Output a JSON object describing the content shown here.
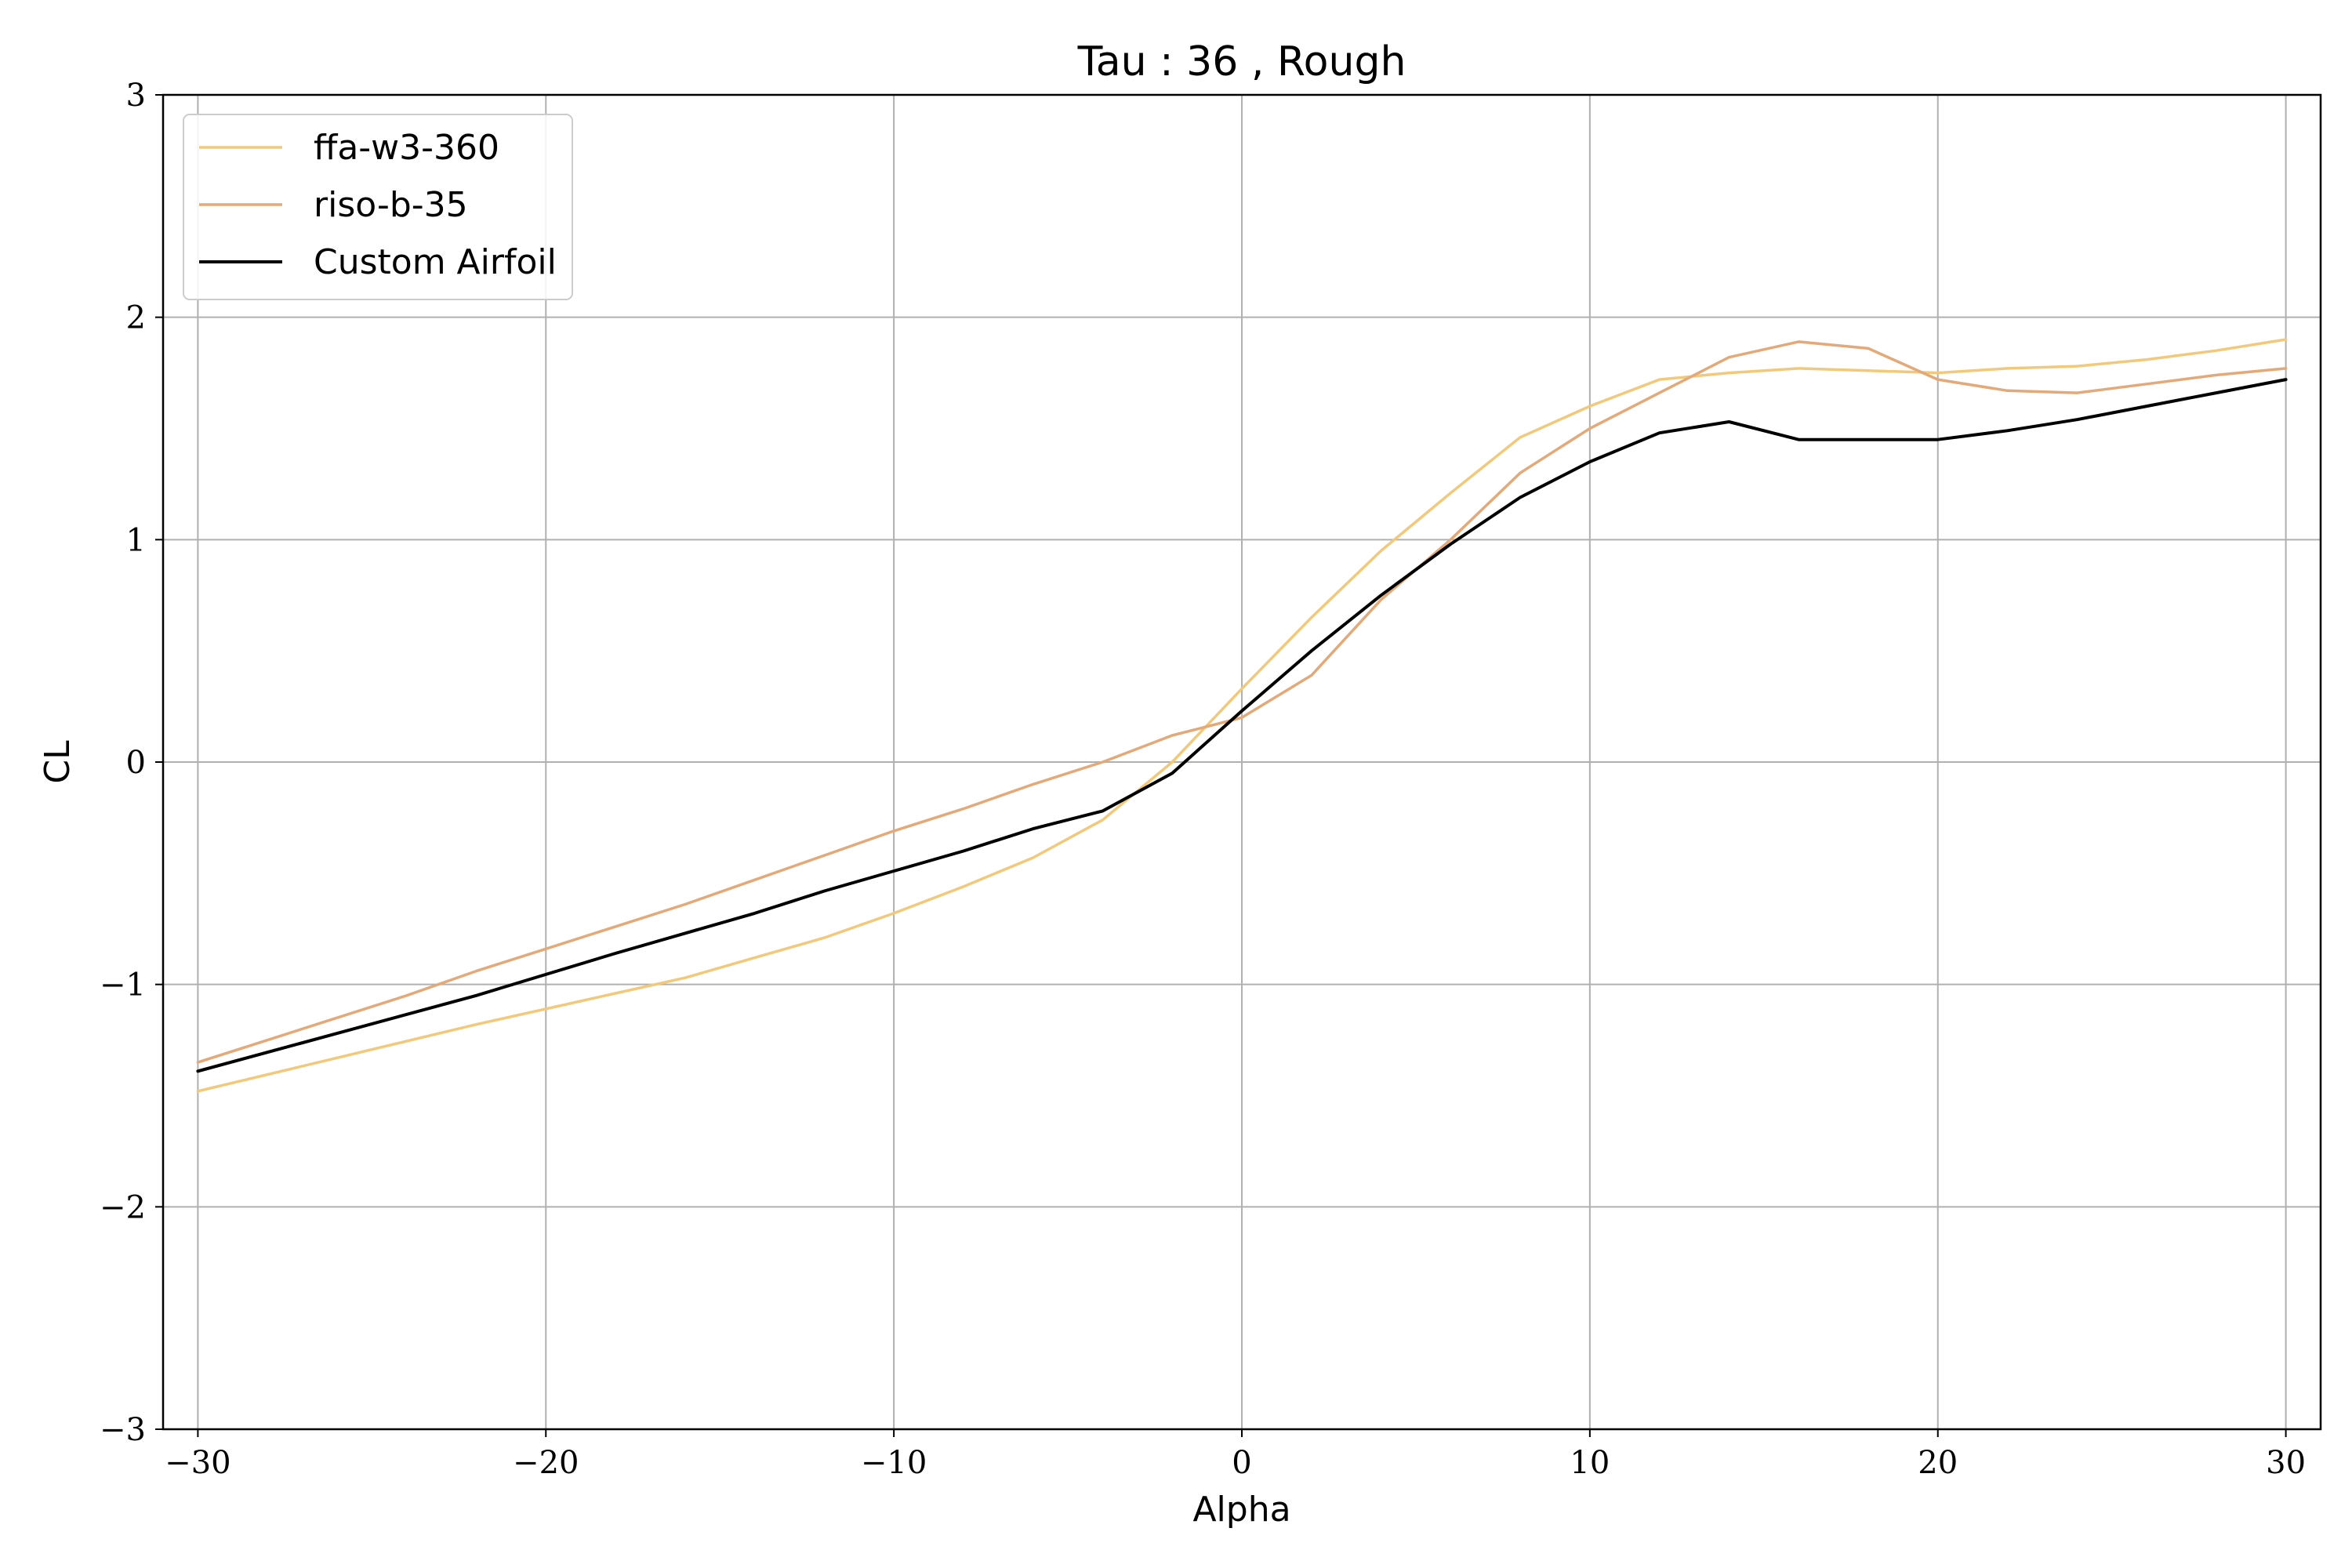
{
  "chart_data": {
    "type": "line",
    "title": "Tau : 36 , Rough",
    "xlabel": "Alpha",
    "ylabel": "CL",
    "xlim": [
      -31,
      31
    ],
    "ylim": [
      -3,
      3
    ],
    "xticks": [
      -30,
      -20,
      -10,
      0,
      10,
      20,
      30
    ],
    "yticks": [
      -3,
      -2,
      -1,
      0,
      1,
      2,
      3
    ],
    "xtick_labels": [
      "−30",
      "−20",
      "−10",
      "0",
      "10",
      "20",
      "30"
    ],
    "ytick_labels": [
      "−3",
      "−2",
      "−1",
      "0",
      "1",
      "2",
      "3"
    ],
    "grid": true,
    "legend_position": "top-left",
    "series": [
      {
        "name": "ffa-w3-360",
        "color": "#f2c97a",
        "x": [
          -30,
          -26,
          -22,
          -18,
          -16,
          -14,
          -12,
          -10,
          -8,
          -6,
          -4,
          -2,
          0,
          2,
          4,
          6,
          8,
          10,
          12,
          14,
          16,
          18,
          20,
          22,
          24,
          26,
          28,
          30
        ],
        "y": [
          -1.48,
          -1.33,
          -1.18,
          -1.04,
          -0.97,
          -0.88,
          -0.79,
          -0.68,
          -0.56,
          -0.43,
          -0.26,
          0.0,
          0.33,
          0.65,
          0.95,
          1.21,
          1.46,
          1.6,
          1.72,
          1.75,
          1.77,
          1.76,
          1.75,
          1.77,
          1.78,
          1.81,
          1.85,
          1.9
        ]
      },
      {
        "name": "riso-b-35",
        "color": "#e3a978",
        "x": [
          -30,
          -26,
          -24,
          -22,
          -20,
          -18,
          -16,
          -14,
          -12,
          -10,
          -8,
          -6,
          -4,
          -2,
          0,
          2,
          4,
          6,
          8,
          10,
          12,
          14,
          16,
          18,
          20,
          22,
          24,
          26,
          28,
          30
        ],
        "y": [
          -1.35,
          -1.15,
          -1.05,
          -0.94,
          -0.84,
          -0.74,
          -0.64,
          -0.53,
          -0.42,
          -0.31,
          -0.21,
          -0.1,
          0.0,
          0.12,
          0.2,
          0.39,
          0.73,
          1.0,
          1.3,
          1.5,
          1.66,
          1.82,
          1.89,
          1.86,
          1.72,
          1.67,
          1.66,
          1.7,
          1.74,
          1.77
        ]
      },
      {
        "name": "Custom Airfoil",
        "color": "#000000",
        "x": [
          -30,
          -26,
          -22,
          -18,
          -16,
          -14,
          -12,
          -10,
          -8,
          -6,
          -4,
          -2,
          0,
          2,
          4,
          6,
          8,
          10,
          12,
          14,
          16,
          18,
          20,
          22,
          24,
          26,
          28,
          30
        ],
        "y": [
          -1.39,
          -1.22,
          -1.05,
          -0.86,
          -0.77,
          -0.68,
          -0.58,
          -0.49,
          -0.4,
          -0.3,
          -0.22,
          -0.05,
          0.23,
          0.5,
          0.75,
          0.98,
          1.19,
          1.35,
          1.48,
          1.53,
          1.45,
          1.45,
          1.45,
          1.49,
          1.54,
          1.6,
          1.66,
          1.72
        ]
      }
    ]
  }
}
